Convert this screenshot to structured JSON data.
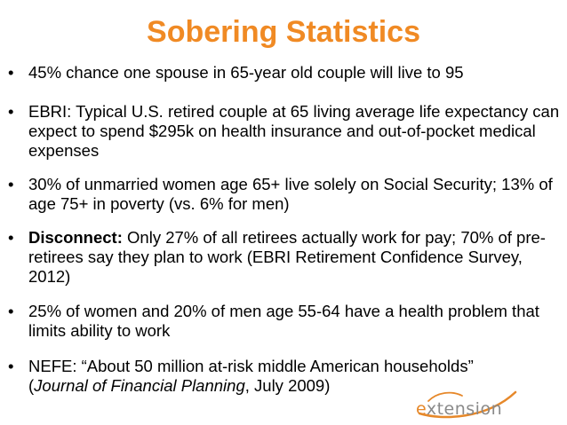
{
  "slide": {
    "title": "Sobering Statistics",
    "title_color": "#f08a24",
    "bullet_glyph": "•",
    "bullets": [
      {
        "text": "45% chance one spouse in 65-year old couple will live to 95"
      },
      {
        "text": "EBRI: Typical U.S. retired couple at 65 living average life expectancy can expect to spend $295k on health insurance and out-of-pocket medical expenses"
      },
      {
        "text": "30% of unmarried women age 65+ live solely on Social Security; 13% of age 75+ in poverty (vs. 6% for men)"
      },
      {
        "lead": "Disconnect:",
        "text": " Only 27% of all retirees actually work for pay; 70% of pre-retirees say they plan to work (EBRI Retirement Confidence Survey, 2012)"
      },
      {
        "text": "25% of women and 20% of men age 55-64 have a health problem that limits ability to work"
      },
      {
        "line1": "NEFE: “About 50 million at-risk middle American households”",
        "open_paren": "(",
        "journal": "Journal of Financial Planning",
        "tail": ", July 2009)"
      }
    ]
  },
  "logo": {
    "text_first": "e",
    "text_rest": "xtension",
    "accent_color": "#e6882a",
    "text_color": "#8a8a8a"
  }
}
